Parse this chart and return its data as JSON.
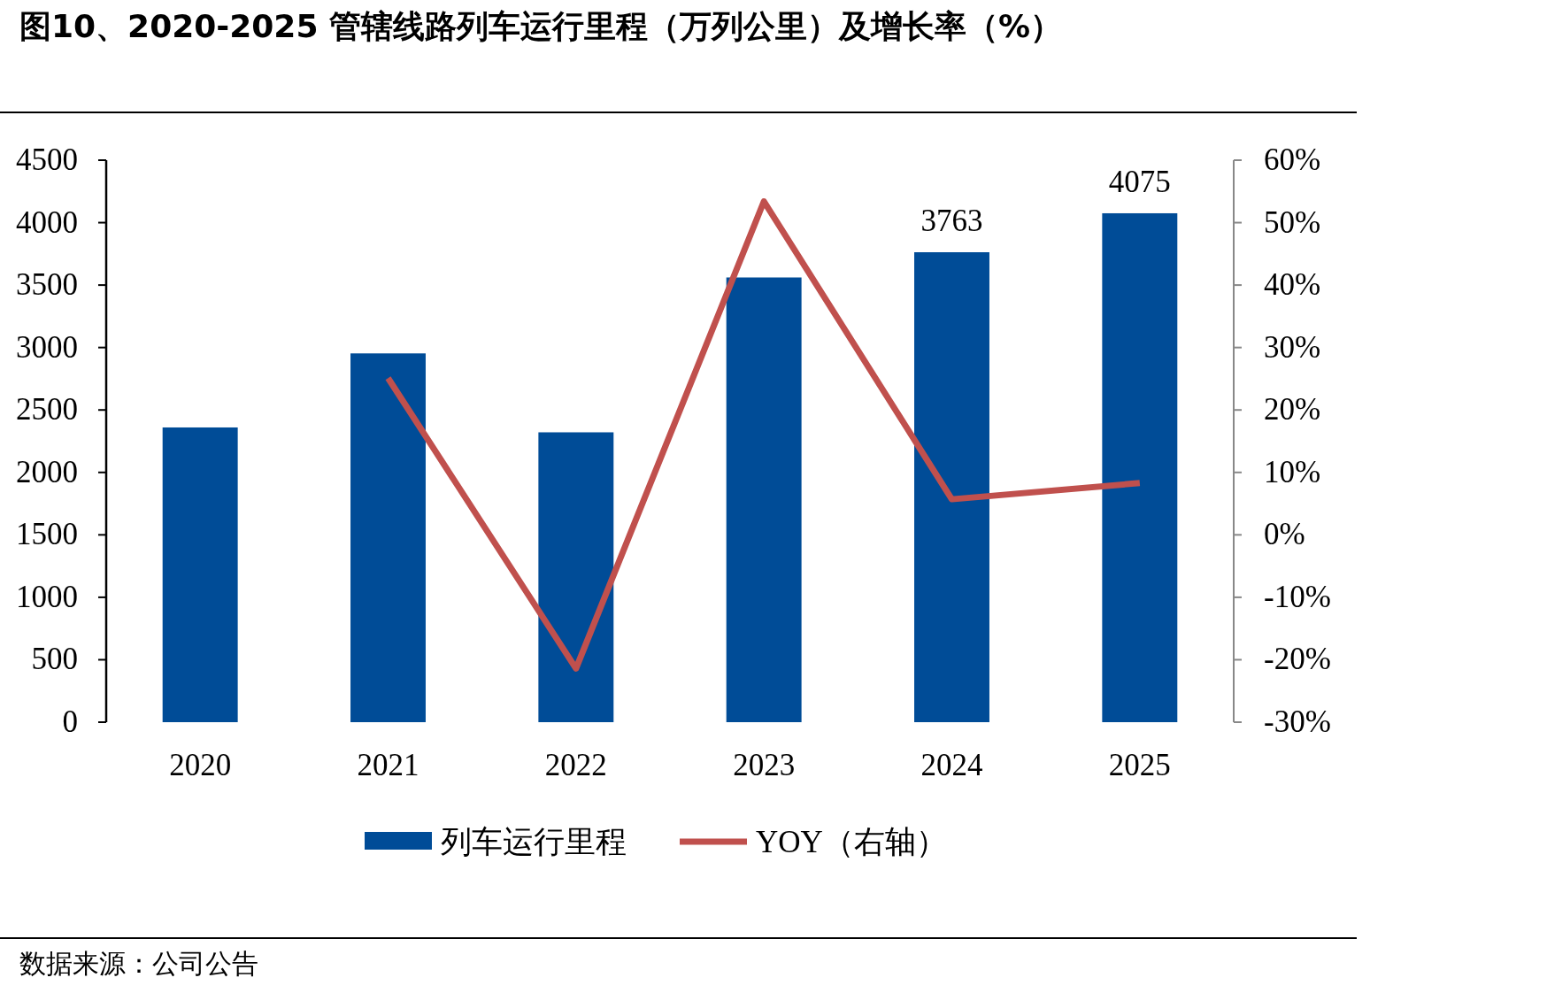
{
  "chart_data": {
    "type": "bar",
    "title": "图10、2020-2025 管辖线路列车运行里程（万列公里）及增长率（%）",
    "annotations": [
      "数据来源：公司公告"
    ],
    "categories": [
      "2020",
      "2021",
      "2022",
      "2023",
      "2024",
      "2025"
    ],
    "series": [
      {
        "name": "列车运行里程",
        "color": "#004c97",
        "values": [
          2360,
          2953,
          2321,
          3561,
          3763,
          4075
        ],
        "value_labels": [
          null,
          null,
          null,
          null,
          "3763",
          "4075"
        ]
      },
      {
        "name": "YOY（右轴）",
        "type": "line",
        "axis": "y2",
        "color": "#c0504d",
        "values": [
          null,
          25.1,
          -21.4,
          53.4,
          5.7,
          8.3
        ]
      }
    ],
    "ylim": [
      0,
      4500
    ],
    "yticks": [
      0,
      500,
      1000,
      1500,
      2000,
      2500,
      3000,
      3500,
      4000,
      4500
    ],
    "y2lim": [
      -30,
      60
    ],
    "y2ticks": [
      {
        "value": -30,
        "label": "-30%"
      },
      {
        "value": -20,
        "label": "-20%"
      },
      {
        "value": -10,
        "label": "-10%"
      },
      {
        "value": 0,
        "label": "0%"
      },
      {
        "value": 10,
        "label": "10%"
      },
      {
        "value": 20,
        "label": "20%"
      },
      {
        "value": 30,
        "label": "30%"
      },
      {
        "value": 40,
        "label": "40%"
      },
      {
        "value": 50,
        "label": "50%"
      },
      {
        "value": 60,
        "label": "60%"
      }
    ],
    "legend": "bottom",
    "grid": false,
    "marker": "none"
  }
}
